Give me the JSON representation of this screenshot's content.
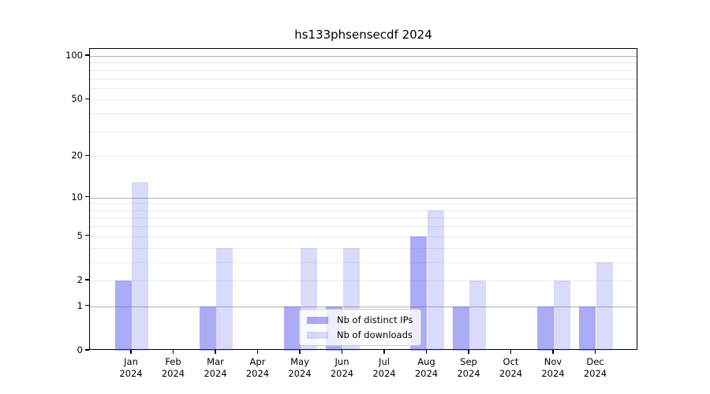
{
  "chart_data": {
    "type": "bar",
    "title": "hs133phsensecdf 2024",
    "categories": [
      "Jan 2024",
      "Feb 2024",
      "Mar 2024",
      "Apr 2024",
      "May 2024",
      "Jun 2024",
      "Jul 2024",
      "Aug 2024",
      "Sep 2024",
      "Oct 2024",
      "Nov 2024",
      "Dec 2024"
    ],
    "month_labels": [
      "Jan",
      "Feb",
      "Mar",
      "Apr",
      "May",
      "Jun",
      "Jul",
      "Aug",
      "Sep",
      "Oct",
      "Nov",
      "Dec"
    ],
    "year_label": "2024",
    "series": [
      {
        "name": "Nb of distinct IPs",
        "color": "rgba(68,68,235,0.45)",
        "values": [
          2,
          0,
          1,
          0,
          1,
          1,
          0,
          5,
          1,
          0,
          1,
          1
        ]
      },
      {
        "name": "Nb of downloads",
        "color": "rgba(68,68,235,0.20)",
        "values": [
          13,
          0,
          4,
          0,
          4,
          4,
          0,
          8,
          2,
          0,
          2,
          3
        ]
      }
    ],
    "yscale": "log1p",
    "ylim": [
      0,
      113
    ],
    "y_ticks": [
      0,
      1,
      2,
      5,
      10,
      20,
      50,
      100
    ],
    "y_major_gridlines": [
      1,
      10,
      100
    ],
    "y_minor_gridlines": [
      2,
      3,
      4,
      5,
      6,
      7,
      8,
      9,
      20,
      30,
      40,
      50,
      60,
      70,
      80,
      90
    ],
    "xlabel": "",
    "ylabel": "",
    "grid": true,
    "legend": {
      "position": "lower center",
      "labels": [
        "Nb of distinct IPs",
        "Nb of downloads"
      ]
    },
    "colors": {
      "bar_distinct_ips": "rgba(68,68,235,0.45)",
      "bar_downloads": "rgba(68,68,235,0.20)",
      "major_grid": "#b3b3b3",
      "minor_grid": "#e9e9e9",
      "spine": "#000000",
      "background": "#ffffff"
    }
  }
}
